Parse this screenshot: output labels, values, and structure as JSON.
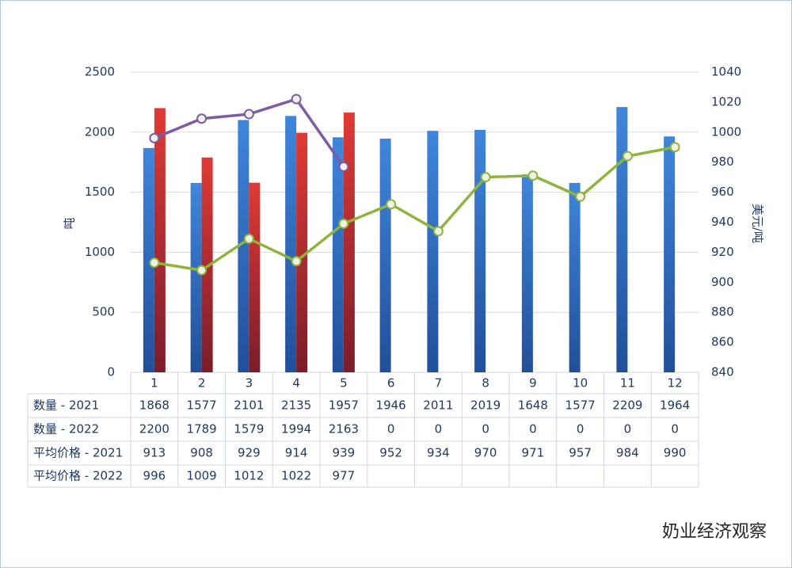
{
  "chart_data": {
    "type": "bar",
    "categories": [
      "1",
      "2",
      "3",
      "4",
      "5",
      "6",
      "7",
      "8",
      "9",
      "10",
      "11",
      "12"
    ],
    "series": [
      {
        "name": "数量 - 2021",
        "type": "bar",
        "color": "#2e6fc6",
        "values": [
          1868,
          1577,
          2101,
          2135,
          1957,
          1946,
          2011,
          2019,
          1648,
          1577,
          2209,
          1964
        ]
      },
      {
        "name": "数量 - 2022",
        "type": "bar",
        "color": "#d13232",
        "values": [
          2200,
          1789,
          1579,
          1994,
          2163,
          0,
          0,
          0,
          0,
          0,
          0,
          0
        ]
      },
      {
        "name": "平均价格 - 2021",
        "type": "line",
        "axis": "y2",
        "color": "#8fb43c",
        "values": [
          913,
          908,
          929,
          914,
          939,
          952,
          934,
          970,
          971,
          957,
          984,
          990
        ]
      },
      {
        "name": "平均价格 - 2022",
        "type": "line",
        "axis": "y2",
        "color": "#7d5ba6",
        "values": [
          996,
          1009,
          1012,
          1022,
          977,
          null,
          null,
          null,
          null,
          null,
          null,
          null
        ]
      }
    ],
    "ylabel": "吨",
    "y2label": "美元/吨",
    "ylim": [
      0,
      2500
    ],
    "yticks": [
      0,
      500,
      1000,
      1500,
      2000,
      2500
    ],
    "y2lim": [
      840,
      1040
    ],
    "y2ticks": [
      840,
      860,
      880,
      900,
      920,
      940,
      960,
      980,
      1000,
      1020,
      1040
    ],
    "grid": true,
    "watermark": "奶业经济观察"
  }
}
